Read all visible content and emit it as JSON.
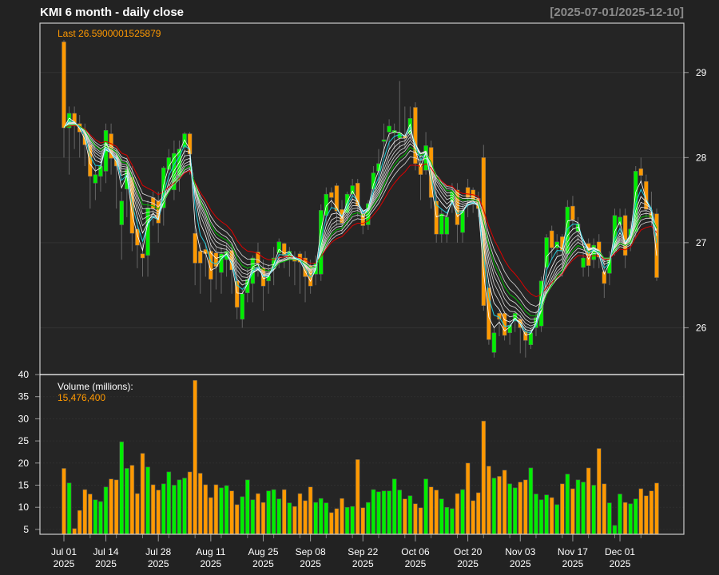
{
  "header": {
    "title": "KMI  6 month - daily close",
    "date_range": "[2025-07-01/2025-12-10]"
  },
  "price_panel": {
    "last_label": "Last 26.5900001525879"
  },
  "volume_panel": {
    "label": "Volume (millions):",
    "last_value": "15,476,400"
  },
  "colors": {
    "background": "#222222",
    "panel": "#252525",
    "up": "#00ee00",
    "down": "#ff9900",
    "frame": "#cccccc",
    "ma_short": "#22ccdd",
    "ma_mid": "#00bb00",
    "ma_long": "#dd0000"
  },
  "chart_data": [
    {
      "type": "candlestick",
      "title": "KMI  6 month - daily close",
      "ylim": [
        25.45,
        29.58
      ],
      "y_ticks": [
        "26",
        "27",
        "28",
        "29"
      ],
      "y_tick_values": [
        26,
        27,
        28,
        29
      ],
      "grid": true,
      "x_tick_labels": [
        {
          "index": 0,
          "label": "Jul 01",
          "year": "2025"
        },
        {
          "index": 8,
          "label": "Jul 14",
          "year": "2025"
        },
        {
          "index": 18,
          "label": "Jul 28",
          "year": "2025"
        },
        {
          "index": 28,
          "label": "Aug 11",
          "year": "2025"
        },
        {
          "index": 38,
          "label": "Aug 25",
          "year": "2025"
        },
        {
          "index": 47,
          "label": "Sep 08",
          "year": "2025"
        },
        {
          "index": 57,
          "label": "Sep 22",
          "year": "2025"
        },
        {
          "index": 67,
          "label": "Oct 06",
          "year": "2025"
        },
        {
          "index": 77,
          "label": "Oct 20",
          "year": "2025"
        },
        {
          "index": 87,
          "label": "Nov 03",
          "year": "2025"
        },
        {
          "index": 97,
          "label": "Nov 17",
          "year": "2025"
        },
        {
          "index": 106,
          "label": "Dec 01",
          "year": "2025"
        }
      ],
      "open": [
        29.36,
        28.35,
        28.52,
        28.4,
        28.3,
        28.15,
        27.7,
        27.78,
        27.84,
        28.28,
        27.98,
        27.21,
        27.63,
        27.77,
        27.16,
        26.87,
        26.85,
        27.53,
        27.49,
        27.41,
        27.86,
        27.62,
        27.79,
        28.12,
        28.28,
        27.11,
        26.9,
        26.92,
        26.9,
        26.88,
        26.65,
        26.8,
        26.91,
        26.55,
        26.1,
        26.41,
        26.52,
        26.89,
        26.7,
        26.55,
        26.69,
        26.88,
        26.99,
        26.82,
        26.83,
        26.87,
        26.82,
        26.73,
        26.63,
        26.63,
        27.32,
        27.59,
        27.67,
        27.39,
        27.35,
        27.57,
        27.7,
        27.34,
        27.21,
        27.63,
        27.84,
        28.19,
        28.3,
        28.29,
        28.23,
        28.26,
        28.28,
        28.59,
        27.93,
        27.85,
        28.12,
        27.49,
        27.1,
        27.1,
        27.48,
        27.62,
        27.12,
        27.65,
        27.62,
        27.52,
        28.0,
        26.47,
        25.71,
        26.17,
        26.17,
        25.94,
        26.08,
        26.1,
        25.96,
        25.8,
        26.0,
        26.02,
        26.71,
        27.14,
        26.94,
        27.07,
        26.87,
        27.43,
        27.13,
        26.71,
        26.99,
        26.8,
        27.01,
        26.66,
        26.64,
        26.9,
        27.21,
        27.32,
        26.99,
        27.13,
        27.87,
        27.72,
        27.35,
        27.34
      ],
      "high": [
        29.38,
        28.6,
        28.6,
        28.5,
        28.4,
        28.2,
        27.9,
        28.0,
        28.4,
        28.4,
        28.1,
        27.6,
        28.0,
        27.9,
        27.3,
        27.0,
        27.5,
        27.6,
        27.6,
        27.9,
        28.1,
        28.2,
        28.2,
        28.3,
        28.3,
        27.2,
        27.0,
        27.0,
        27.0,
        26.95,
        26.95,
        27.0,
        27.0,
        26.6,
        26.45,
        26.7,
        26.85,
        27.0,
        26.8,
        26.75,
        26.95,
        27.05,
        27.0,
        26.95,
        26.9,
        26.9,
        26.9,
        26.8,
        26.85,
        27.45,
        27.65,
        27.65,
        27.7,
        27.5,
        27.6,
        27.75,
        27.75,
        27.4,
        27.5,
        27.9,
        28.1,
        28.4,
        28.45,
        28.4,
        28.9,
        28.6,
        28.6,
        28.65,
        28.0,
        28.3,
        28.2,
        27.6,
        27.4,
        27.35,
        27.7,
        27.7,
        27.45,
        27.75,
        27.65,
        27.6,
        28.15,
        26.55,
        26.0,
        26.2,
        26.2,
        26.1,
        26.2,
        26.15,
        26.0,
        26.0,
        26.2,
        26.6,
        27.1,
        27.2,
        27.1,
        27.1,
        27.5,
        27.55,
        27.3,
        26.9,
        27.05,
        27.05,
        27.1,
        26.8,
        26.9,
        27.4,
        27.4,
        27.4,
        27.25,
        27.9,
        28.0,
        27.8,
        27.6,
        27.4
      ],
      "low": [
        28.0,
        27.8,
        28.1,
        28.0,
        27.9,
        27.4,
        27.5,
        27.6,
        27.7,
        27.8,
        27.4,
        26.8,
        27.3,
        26.9,
        26.7,
        26.6,
        26.6,
        27.2,
        27.0,
        27.2,
        27.6,
        27.5,
        27.6,
        28.0,
        27.8,
        26.5,
        26.4,
        26.6,
        26.3,
        26.45,
        26.4,
        26.6,
        26.4,
        26.1,
        26.0,
        26.3,
        26.3,
        26.6,
        26.2,
        26.4,
        26.5,
        26.7,
        26.7,
        26.6,
        26.5,
        26.4,
        26.3,
        26.4,
        26.5,
        26.55,
        27.2,
        27.4,
        27.2,
        27.1,
        27.2,
        27.5,
        27.3,
        27.1,
        27.15,
        27.5,
        27.7,
        28.0,
        28.1,
        28.1,
        28.1,
        28.1,
        28.2,
        27.85,
        27.5,
        27.8,
        27.4,
        27.0,
        27.0,
        27.0,
        27.35,
        27.0,
        27.0,
        27.3,
        27.35,
        27.3,
        26.2,
        25.8,
        25.65,
        25.9,
        25.85,
        25.8,
        25.95,
        25.7,
        25.65,
        25.75,
        25.9,
        25.95,
        26.6,
        26.8,
        26.85,
        26.6,
        26.8,
        27.15,
        27.0,
        26.6,
        26.6,
        26.7,
        26.7,
        26.35,
        26.5,
        26.85,
        27.1,
        26.7,
        26.9,
        27.05,
        27.7,
        27.3,
        27.2,
        26.55
      ],
      "close": [
        28.35,
        28.52,
        28.4,
        28.3,
        28.15,
        27.78,
        27.8,
        27.9,
        28.32,
        27.99,
        27.9,
        27.49,
        27.86,
        27.11,
        26.97,
        26.82,
        27.41,
        27.4,
        27.23,
        27.88,
        28.0,
        28.05,
        28.1,
        28.28,
        28.04,
        26.76,
        26.76,
        26.87,
        26.57,
        26.72,
        26.87,
        26.9,
        26.68,
        26.24,
        26.4,
        26.57,
        26.82,
        26.76,
        26.49,
        26.61,
        26.82,
        27.01,
        26.85,
        26.9,
        26.78,
        26.77,
        26.6,
        26.49,
        26.76,
        27.38,
        27.57,
        27.53,
        27.37,
        27.23,
        27.57,
        27.67,
        27.43,
        27.2,
        27.46,
        27.82,
        27.93,
        28.21,
        28.37,
        28.32,
        28.29,
        28.23,
        28.46,
        27.93,
        27.8,
        28.14,
        27.53,
        27.1,
        27.34,
        27.3,
        27.6,
        27.21,
        27.38,
        27.53,
        27.5,
        27.4,
        26.26,
        25.86,
        25.94,
        26.1,
        25.91,
        26.03,
        26.17,
        26.0,
        25.85,
        25.94,
        26.12,
        26.55,
        27.06,
        26.94,
        27.01,
        26.9,
        27.42,
        27.27,
        27.22,
        26.82,
        26.73,
        26.97,
        26.83,
        26.52,
        26.82,
        27.32,
        27.3,
        26.85,
        27.16,
        27.84,
        27.79,
        27.39,
        27.29,
        26.59
      ]
    },
    {
      "type": "bar",
      "title": "Volume (millions):",
      "ylim": [
        3.9,
        40
      ],
      "y_ticks": [
        "5",
        "10",
        "15",
        "20",
        "25",
        "30",
        "35",
        "40"
      ],
      "y_tick_values": [
        5,
        10,
        15,
        20,
        25,
        30,
        35,
        40
      ],
      "values": [
        18.8,
        15.5,
        5.2,
        9.3,
        14.0,
        13.0,
        11.7,
        11.3,
        14.6,
        16.4,
        16.2,
        24.8,
        18.8,
        19.5,
        13.1,
        22.2,
        19.1,
        15.1,
        13.9,
        15.3,
        18.0,
        15.0,
        16.2,
        16.6,
        18.0,
        38.7,
        17.7,
        15.1,
        12.2,
        15.1,
        14.4,
        14.9,
        13.7,
        10.6,
        12.4,
        16.2,
        11.7,
        13.1,
        11.1,
        13.7,
        14.0,
        11.9,
        14.0,
        11.0,
        10.2,
        13.1,
        11.5,
        14.6,
        11.1,
        12.0,
        11.0,
        8.8,
        9.7,
        12.0,
        10.0,
        10.2,
        20.8,
        9.9,
        11.1,
        14.0,
        13.5,
        13.7,
        13.7,
        16.4,
        13.9,
        11.9,
        12.6,
        10.8,
        9.9,
        16.4,
        14.6,
        13.9,
        11.9,
        10.0,
        9.7,
        13.1,
        14.0,
        20.0,
        11.5,
        13.3,
        29.5,
        19.3,
        16.6,
        17.0,
        18.4,
        15.3,
        14.4,
        15.7,
        16.2,
        18.9,
        13.0,
        11.7,
        12.8,
        12.2,
        10.6,
        15.3,
        17.5,
        14.2,
        16.2,
        15.7,
        18.9,
        15.0,
        23.3,
        15.3,
        11.0,
        5.9,
        13.0,
        11.1,
        10.8,
        11.9,
        14.2,
        12.6,
        13.7,
        15.48
      ]
    }
  ]
}
